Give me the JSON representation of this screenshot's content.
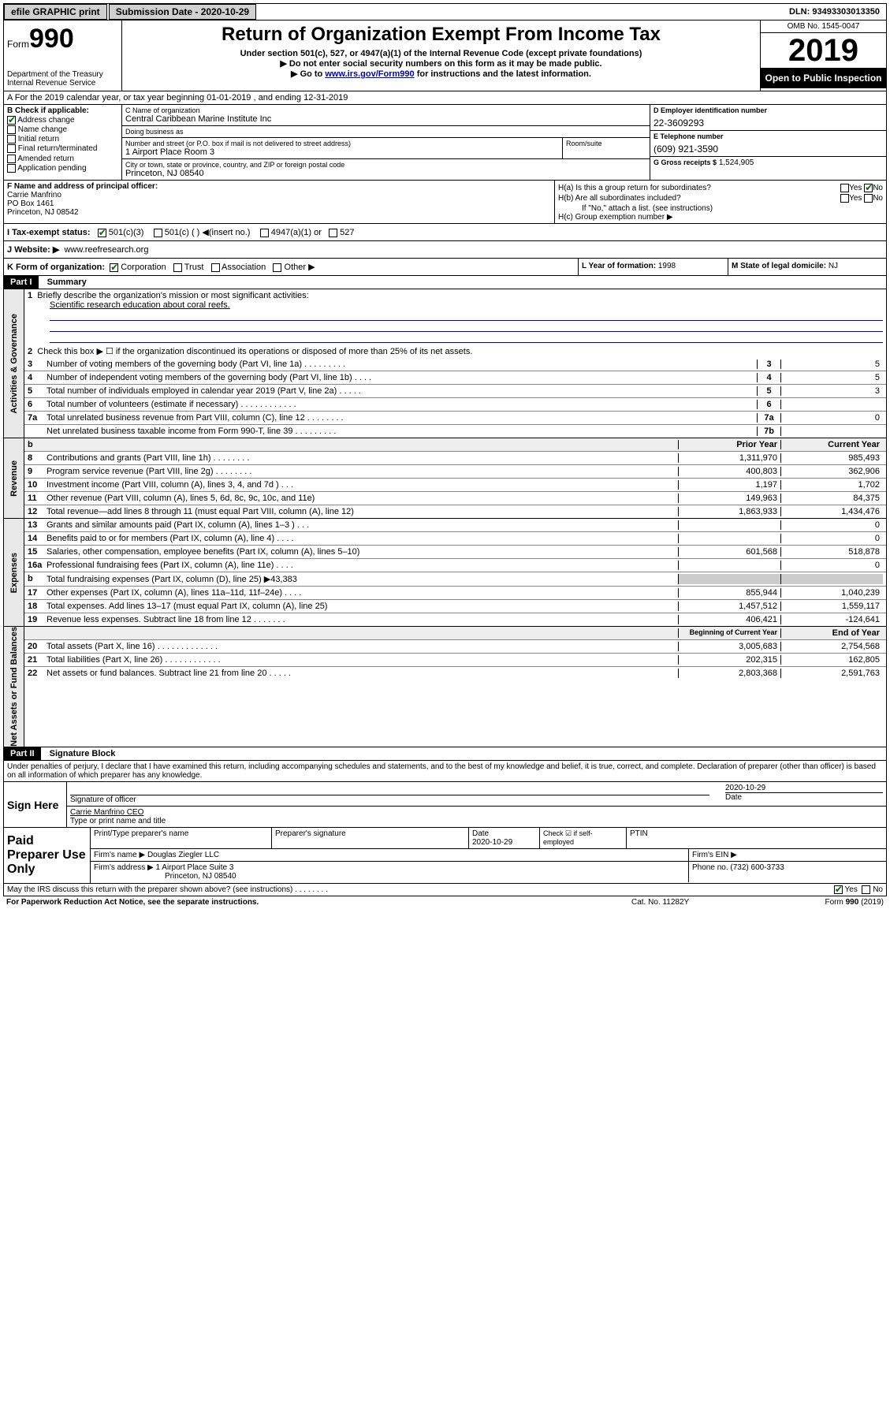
{
  "topbar": {
    "efile": "efile GRAPHIC print",
    "submission_label": "Submission Date - 2020-10-29",
    "dln": "DLN: 93493303013350"
  },
  "header": {
    "form_label": "Form",
    "form_num": "990",
    "dept": "Department of the Treasury\nInternal Revenue Service",
    "title": "Return of Organization Exempt From Income Tax",
    "subtitle": "Under section 501(c), 527, or 4947(a)(1) of the Internal Revenue Code (except private foundations)",
    "inst1": "▶ Do not enter social security numbers on this form as it may be made public.",
    "inst2_pre": "▶ Go to ",
    "inst2_link": "www.irs.gov/Form990",
    "inst2_post": " for instructions and the latest information.",
    "omb": "OMB No. 1545-0047",
    "year": "2019",
    "inspection": "Open to Public Inspection"
  },
  "rowA": "A For the 2019 calendar year, or tax year beginning 01-01-2019    , and ending 12-31-2019",
  "B": {
    "label": "B Check if applicable:",
    "items": [
      "Address change",
      "Name change",
      "Initial return",
      "Final return/terminated",
      "Amended return",
      "Application pending"
    ],
    "checked": [
      true,
      false,
      false,
      false,
      false,
      false
    ]
  },
  "C": {
    "name_lbl": "C Name of organization",
    "name": "Central Caribbean Marine Institute Inc",
    "dba_lbl": "Doing business as",
    "dba": "",
    "addr_lbl": "Number and street (or P.O. box if mail is not delivered to street address)",
    "room_lbl": "Room/suite",
    "addr": "1 Airport Place Room 3",
    "city_lbl": "City or town, state or province, country, and ZIP or foreign postal code",
    "city": "Princeton, NJ  08540"
  },
  "D": {
    "lbl": "D Employer identification number",
    "val": "22-3609293"
  },
  "E": {
    "lbl": "E Telephone number",
    "val": "(609) 921-3590"
  },
  "G": {
    "lbl": "G Gross receipts $",
    "val": "1,524,905"
  },
  "F": {
    "lbl": "F  Name and address of principal officer:",
    "name": "Carrie Manfrino",
    "addr1": "PO Box 1461",
    "addr2": "Princeton, NJ  08542"
  },
  "H": {
    "a": "H(a)  Is this a group return for subordinates?",
    "a_no": true,
    "b": "H(b)  Are all subordinates included?",
    "note": "If \"No,\" attach a list. (see instructions)",
    "c": "H(c)  Group exemption number ▶"
  },
  "I": {
    "lbl": "I  Tax-exempt status:",
    "opts": [
      "501(c)(3)",
      "501(c) (   ) ◀(insert no.)",
      "4947(a)(1) or",
      "527"
    ],
    "checked": [
      true,
      false,
      false,
      false
    ]
  },
  "J": {
    "lbl": "J  Website: ▶",
    "val": "www.reefresearch.org"
  },
  "K": {
    "lbl": "K Form of organization:",
    "opts": [
      "Corporation",
      "Trust",
      "Association",
      "Other ▶"
    ],
    "checked": [
      true,
      false,
      false,
      false
    ]
  },
  "L": {
    "lbl": "L Year of formation:",
    "val": "1998"
  },
  "M": {
    "lbl": "M State of legal domicile:",
    "val": "NJ"
  },
  "partI": {
    "hdr": "Part I",
    "title": "Summary"
  },
  "gov": {
    "tab": "Activities & Governance",
    "l1": "Briefly describe the organization's mission or most significant activities:",
    "l1val": "Scientific research education about coral reefs.",
    "l2": "Check this box ▶ ☐  if the organization discontinued its operations or disposed of more than 25% of its net assets.",
    "rows": [
      {
        "n": "3",
        "d": "Number of voting members of the governing body (Part VI, line 1a)   .    .    .    .    .    .    .    .    .",
        "box": "3",
        "v": "5"
      },
      {
        "n": "4",
        "d": "Number of independent voting members of the governing body (Part VI, line 1b)    .    .    .    .",
        "box": "4",
        "v": "5"
      },
      {
        "n": "5",
        "d": "Total number of individuals employed in calendar year 2019 (Part V, line 2a)   .    .    .    .    .",
        "box": "5",
        "v": "3"
      },
      {
        "n": "6",
        "d": "Total number of volunteers (estimate if necessary)   .    .    .    .    .    .    .    .    .    .    .    .",
        "box": "6",
        "v": ""
      },
      {
        "n": "7a",
        "d": "Total unrelated business revenue from Part VIII, column (C), line 12   .    .    .    .    .    .    .    .",
        "box": "7a",
        "v": "0"
      },
      {
        "n": "",
        "d": "Net unrelated business taxable income from Form 990-T, line 39   .    .    .    .    .    .    .    .    .",
        "box": "7b",
        "v": ""
      }
    ]
  },
  "rev": {
    "tab": "Revenue",
    "hdr_prior": "Prior Year",
    "hdr_curr": "Current Year",
    "rows": [
      {
        "n": "8",
        "d": "Contributions and grants (Part VIII, line 1h)   .    .    .    .    .    .    .    .",
        "p": "1,311,970",
        "c": "985,493"
      },
      {
        "n": "9",
        "d": "Program service revenue (Part VIII, line 2g)   .    .    .    .    .    .    .    .",
        "p": "400,803",
        "c": "362,906"
      },
      {
        "n": "10",
        "d": "Investment income (Part VIII, column (A), lines 3, 4, and 7d )   .    .    .",
        "p": "1,197",
        "c": "1,702"
      },
      {
        "n": "11",
        "d": "Other revenue (Part VIII, column (A), lines 5, 6d, 8c, 9c, 10c, and 11e)",
        "p": "149,963",
        "c": "84,375"
      },
      {
        "n": "12",
        "d": "Total revenue—add lines 8 through 11 (must equal Part VIII, column (A), line 12)",
        "p": "1,863,933",
        "c": "1,434,476"
      }
    ]
  },
  "exp": {
    "tab": "Expenses",
    "rows": [
      {
        "n": "13",
        "d": "Grants and similar amounts paid (Part IX, column (A), lines 1–3 )   .    .    .",
        "p": "",
        "c": "0"
      },
      {
        "n": "14",
        "d": "Benefits paid to or for members (Part IX, column (A), line 4)   .    .    .    .",
        "p": "",
        "c": "0"
      },
      {
        "n": "15",
        "d": "Salaries, other compensation, employee benefits (Part IX, column (A), lines 5–10)",
        "p": "601,568",
        "c": "518,878"
      },
      {
        "n": "16a",
        "d": "Professional fundraising fees (Part IX, column (A), line 11e)   .    .    .    .",
        "p": "",
        "c": "0"
      },
      {
        "n": "b",
        "d": "Total fundraising expenses (Part IX, column (D), line 25) ▶43,383",
        "p": "shade",
        "c": "shade"
      },
      {
        "n": "17",
        "d": "Other expenses (Part IX, column (A), lines 11a–11d, 11f–24e)   .    .    .    .",
        "p": "855,944",
        "c": "1,040,239"
      },
      {
        "n": "18",
        "d": "Total expenses. Add lines 13–17 (must equal Part IX, column (A), line 25)",
        "p": "1,457,512",
        "c": "1,559,117"
      },
      {
        "n": "19",
        "d": "Revenue less expenses. Subtract line 18 from line 12   .    .    .    .    .    .    .",
        "p": "406,421",
        "c": "-124,641"
      }
    ]
  },
  "net": {
    "tab": "Net Assets or Fund Balances",
    "hdr_beg": "Beginning of Current Year",
    "hdr_end": "End of Year",
    "rows": [
      {
        "n": "20",
        "d": "Total assets (Part X, line 16)   .    .    .    .    .    .    .    .    .    .    .    .    .",
        "p": "3,005,683",
        "c": "2,754,568"
      },
      {
        "n": "21",
        "d": "Total liabilities (Part X, line 26)   .    .    .    .    .    .    .    .    .    .    .    .",
        "p": "202,315",
        "c": "162,805"
      },
      {
        "n": "22",
        "d": "Net assets or fund balances. Subtract line 21 from line 20   .    .    .    .    .",
        "p": "2,803,368",
        "c": "2,591,763"
      }
    ]
  },
  "partII": {
    "hdr": "Part II",
    "title": "Signature Block"
  },
  "sig": {
    "perjury": "Under penalties of perjury, I declare that I have examined this return, including accompanying schedules and statements, and to the best of my knowledge and belief, it is true, correct, and complete. Declaration of preparer (other than officer) is based on all information of which preparer has any knowledge.",
    "sign_here": "Sign Here",
    "sig_officer": "Signature of officer",
    "date": "2020-10-29",
    "date_lbl": "Date",
    "name": "Carrie Manfrino CEO",
    "name_lbl": "Type or print name and title"
  },
  "prep": {
    "left": "Paid Preparer Use Only",
    "h1": "Print/Type preparer's name",
    "h2": "Preparer's signature",
    "h3": "Date",
    "h3v": "2020-10-29",
    "h4": "Check ☑ if self-employed",
    "h5": "PTIN",
    "firm_lbl": "Firm's name    ▶",
    "firm": "Douglas Ziegler LLC",
    "ein_lbl": "Firm's EIN ▶",
    "addr_lbl": "Firm's address ▶",
    "addr1": "1 Airport Place Suite 3",
    "addr2": "Princeton, NJ  08540",
    "phone_lbl": "Phone no.",
    "phone": "(732) 600-3733"
  },
  "footer": {
    "discuss": "May the IRS discuss this return with the preparer shown above? (see instructions)    .    .    .    .    .    .    .    .",
    "yes": "Yes",
    "no": "No",
    "paperwork": "For Paperwork Reduction Act Notice, see the separate instructions.",
    "cat": "Cat. No. 11282Y",
    "form": "Form 990 (2019)"
  }
}
